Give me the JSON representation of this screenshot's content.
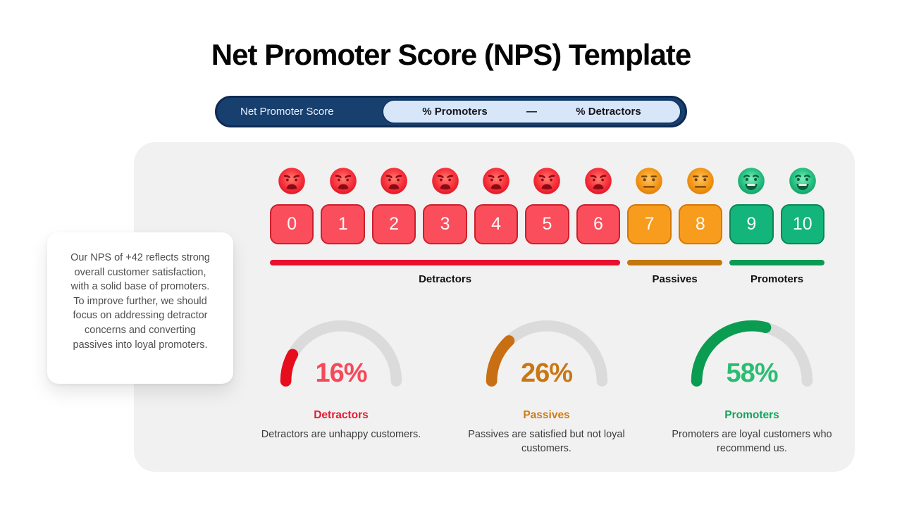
{
  "page": {
    "title": "Net Promoter Score (NPS) Template",
    "background": "#FFFFFF",
    "panel_bg": "#F2F1F1"
  },
  "formula": {
    "left_label": "Net Promoter Score",
    "promoters_label": "% Promoters",
    "operator": "—",
    "detractors_label": "% Detractors",
    "bar_bg": "#17406F",
    "inner_bg": "#D7E6F9"
  },
  "note_card": {
    "text": "Our NPS of +42 reflects strong overall customer satisfaction, with a solid base of promoters. To improve further, we should focus on addressing detractor concerns and converting passives into loyal promoters."
  },
  "scale": {
    "items": [
      {
        "value": "0",
        "group": "detractor"
      },
      {
        "value": "1",
        "group": "detractor"
      },
      {
        "value": "2",
        "group": "detractor"
      },
      {
        "value": "3",
        "group": "detractor"
      },
      {
        "value": "4",
        "group": "detractor"
      },
      {
        "value": "5",
        "group": "detractor"
      },
      {
        "value": "6",
        "group": "detractor"
      },
      {
        "value": "7",
        "group": "passive"
      },
      {
        "value": "8",
        "group": "passive"
      },
      {
        "value": "9",
        "group": "promoter"
      },
      {
        "value": "10",
        "group": "promoter"
      }
    ],
    "groups": {
      "detractor": {
        "face": "angry",
        "box_bg": "#FA4E5D",
        "box_border": "#CC1F2D",
        "face_light": "#FF7B6E",
        "face_mid": "#F93740",
        "face_dark": "#E01222",
        "face_feature": "#8A0A14"
      },
      "passive": {
        "face": "neutral",
        "box_bg": "#F89C1E",
        "box_border": "#D47806",
        "face_light": "#FFC45F",
        "face_mid": "#F59B1E",
        "face_dark": "#DE7D02",
        "face_feature": "#6E4006"
      },
      "promoter": {
        "face": "happy",
        "box_bg": "#13B57B",
        "box_border": "#0A8756",
        "face_light": "#7DEFB9",
        "face_mid": "#2BC487",
        "face_dark": "#0E9E62",
        "face_feature": "#0A5E3D"
      }
    },
    "segments": [
      {
        "label": "Detractors",
        "span": 7,
        "color": "#E8102E"
      },
      {
        "label": "Passives",
        "span": 2,
        "color": "#C2770F"
      },
      {
        "label": "Promoters",
        "span": 2,
        "color": "#0C9B55"
      }
    ]
  },
  "chart_data": [
    {
      "type": "bar",
      "title": "NPS gauge — Detractors",
      "categories": [
        "Detractors"
      ],
      "values": [
        16
      ],
      "ylim": [
        0,
        100
      ],
      "ylabel": "percent"
    },
    {
      "type": "bar",
      "title": "NPS gauge — Passives",
      "categories": [
        "Passives"
      ],
      "values": [
        26
      ],
      "ylim": [
        0,
        100
      ],
      "ylabel": "percent"
    },
    {
      "type": "bar",
      "title": "NPS gauge — Promoters",
      "categories": [
        "Promoters"
      ],
      "values": [
        58
      ],
      "ylim": [
        0,
        100
      ],
      "ylabel": "percent"
    }
  ],
  "gauges": [
    {
      "percent": 16,
      "display": "16%",
      "label": "Detractors",
      "description": "Detractors are unhappy customers.",
      "arc_color": "#E60D1C",
      "value_color": "#F4495A",
      "label_color": "#E11D33",
      "track_color": "#DBDBDB"
    },
    {
      "percent": 26,
      "display": "26%",
      "label": "Passives",
      "description": "Passives are satisfied but not loyal customers.",
      "arc_color": "#C76F12",
      "value_color": "#C97715",
      "label_color": "#CE7B16",
      "track_color": "#DBDBDB"
    },
    {
      "percent": 58,
      "display": "58%",
      "label": "Promoters",
      "description": "Promoters are loyal customers who recommend us.",
      "arc_color": "#0A9C50",
      "value_color": "#2ABD72",
      "label_color": "#12A45C",
      "track_color": "#DBDBDB"
    }
  ]
}
